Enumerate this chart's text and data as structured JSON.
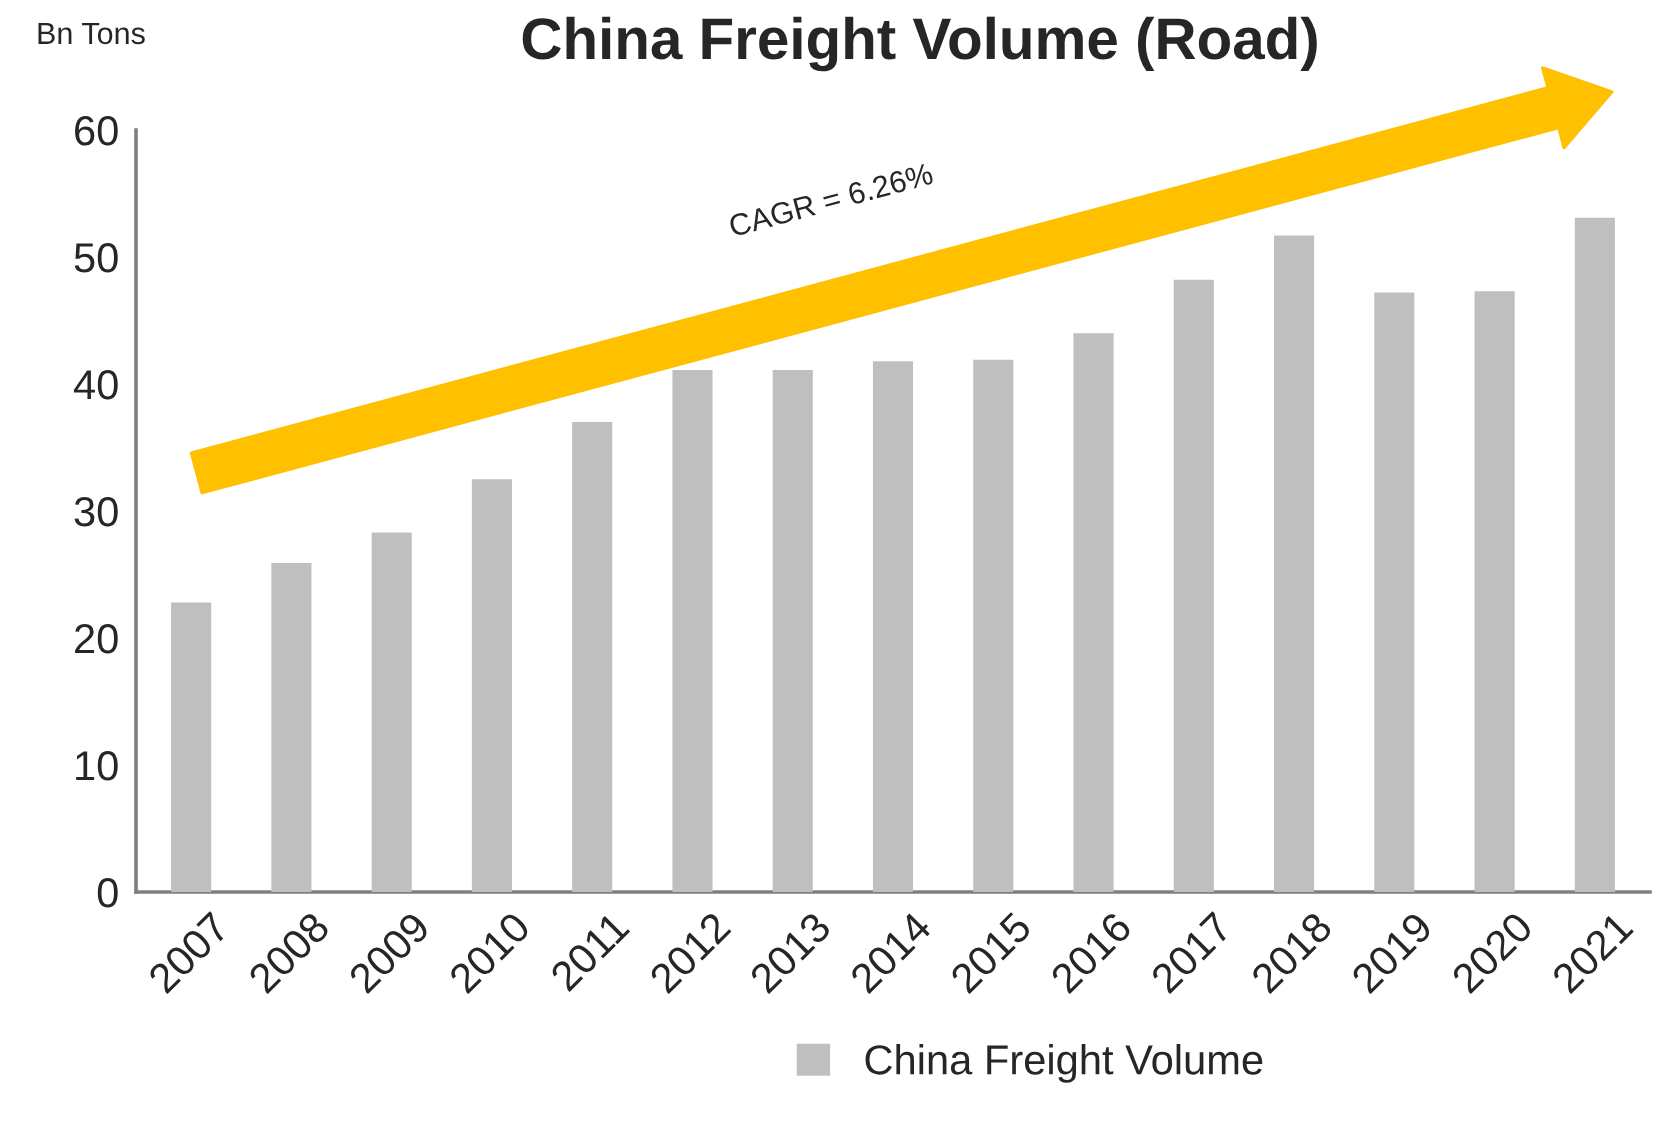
{
  "chart_data": {
    "type": "bar",
    "title": "China Freight Volume (Road)",
    "ylabel": "Bn Tons",
    "categories": [
      "2007",
      "2008",
      "2009",
      "2010",
      "2011",
      "2012",
      "2013",
      "2014",
      "2015",
      "2016",
      "2017",
      "2018",
      "2019",
      "2020",
      "2021"
    ],
    "series": [
      {
        "name": "China Freight Volume",
        "color": "#bfbfbf",
        "values": [
          22.8,
          25.9,
          28.3,
          32.5,
          37.0,
          41.1,
          41.1,
          41.8,
          41.9,
          44.0,
          48.2,
          51.7,
          47.2,
          47.3,
          53.1
        ]
      }
    ],
    "ylim": [
      0,
      60
    ],
    "yticks": [
      0,
      10,
      20,
      30,
      40,
      50,
      60
    ],
    "grid": false,
    "legend": "bottom",
    "annotations": [
      "CAGR = 6.26%"
    ]
  }
}
